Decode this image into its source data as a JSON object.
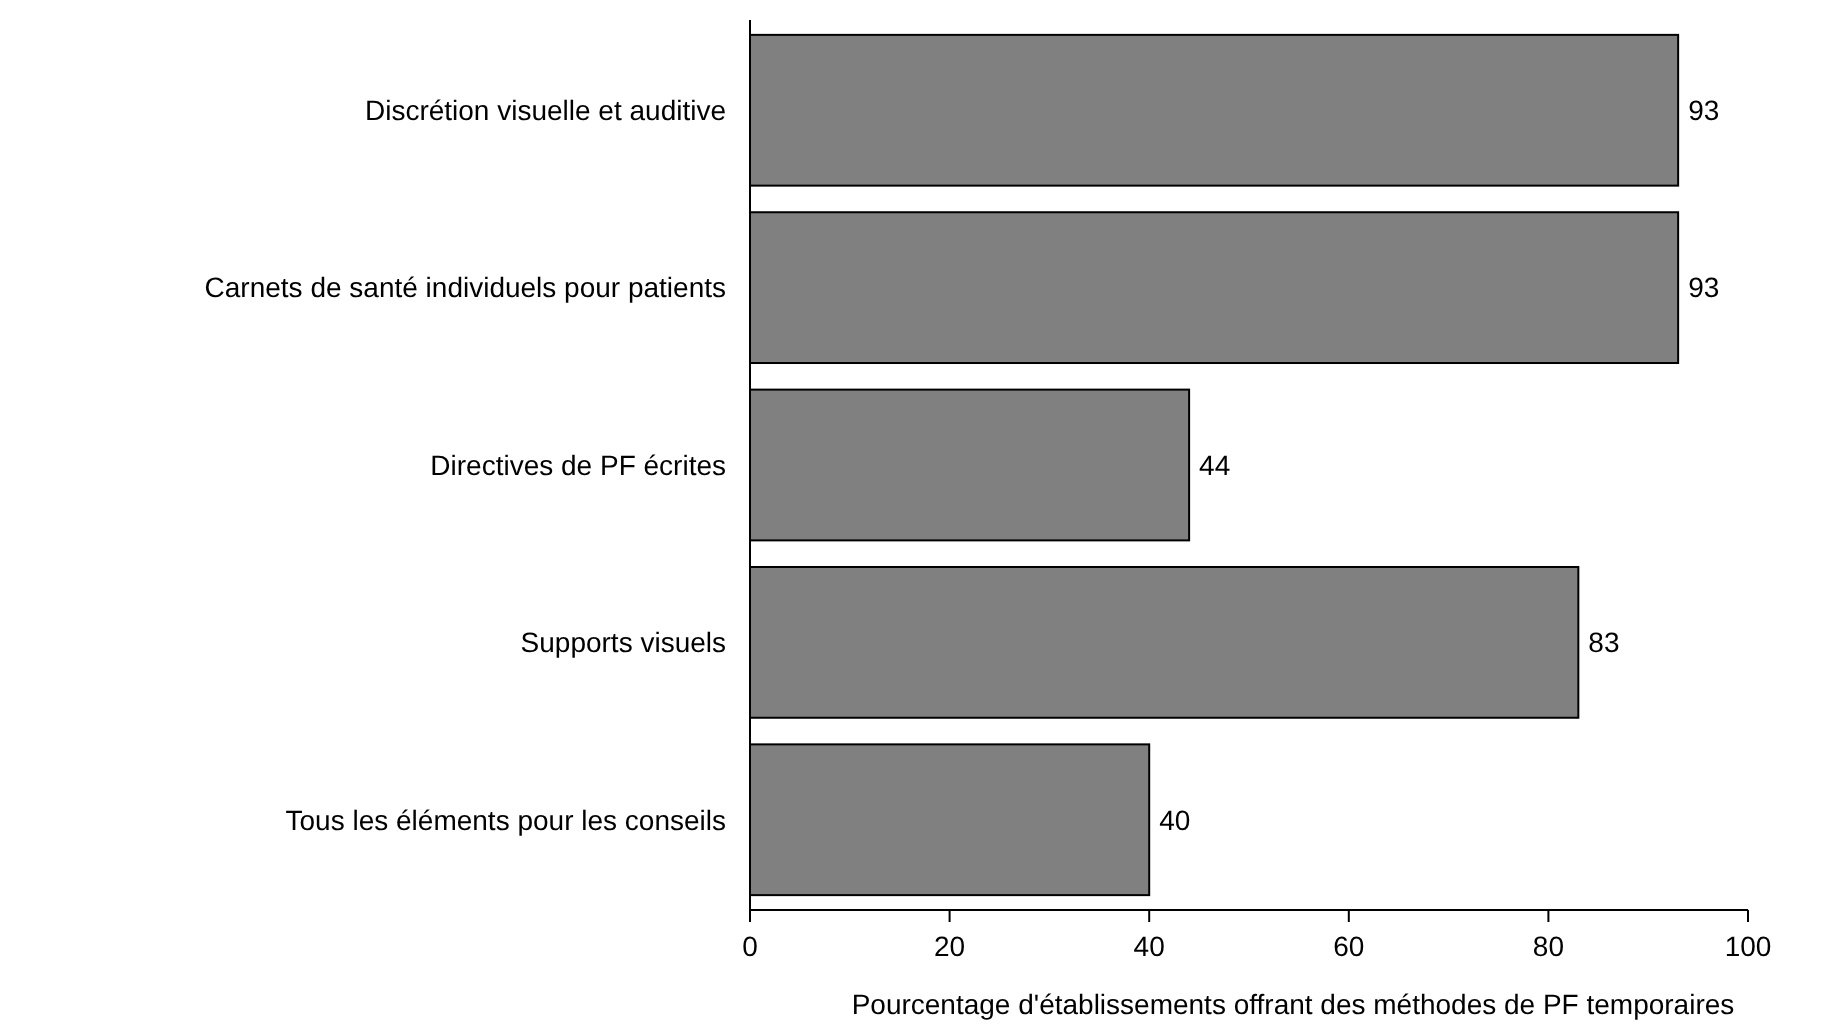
{
  "chart_data": {
    "type": "bar",
    "orientation": "horizontal",
    "xlabel": "Pourcentage d'établissements offrant des méthodes de PF temporaires",
    "categories": [
      "Discrétion visuelle et auditive",
      "Carnets de santé individuels pour patients",
      "Directives de PF écrites",
      "Supports visuels",
      "Tous les éléments pour les conseils"
    ],
    "values": [
      93,
      93,
      44,
      83,
      40
    ],
    "color": "#808080",
    "xlim": [
      0,
      100
    ],
    "xticks": [
      0,
      20,
      40,
      60,
      80,
      100
    ],
    "data_labels": true
  }
}
